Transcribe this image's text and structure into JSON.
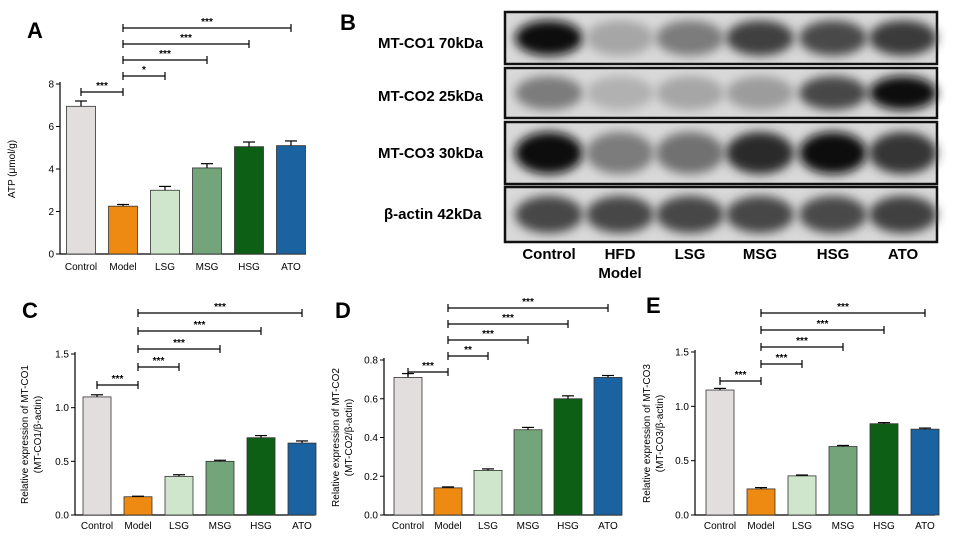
{
  "colors": {
    "Control": "#e3dede",
    "Model": "#ee8a12",
    "LSG": "#cfe5cc",
    "MSG": "#74a47a",
    "HSG": "#0d5f16",
    "ATO": "#1b62a0"
  },
  "chart_data": [
    {
      "id": "A",
      "panel_label": "A",
      "type": "bar",
      "categories": [
        "Control",
        "Model",
        "LSG",
        "MSG",
        "HSG",
        "ATO"
      ],
      "values": [
        6.95,
        2.25,
        3.0,
        4.05,
        5.05,
        5.1
      ],
      "errors": [
        0.25,
        0.08,
        0.18,
        0.2,
        0.22,
        0.22
      ],
      "ylabel_lines": [
        "ATP (μmol/g)"
      ],
      "ylim": [
        0,
        8
      ],
      "yticks": [
        0,
        2,
        4,
        6,
        8
      ],
      "ytick_labels": [
        "0",
        "2",
        "4",
        "6",
        "8"
      ],
      "significance": [
        {
          "from": 0,
          "to": 1,
          "label": "***"
        },
        {
          "from": 1,
          "to": 2,
          "label": "*"
        },
        {
          "from": 1,
          "to": 3,
          "label": "***"
        },
        {
          "from": 1,
          "to": 4,
          "label": "***"
        },
        {
          "from": 1,
          "to": 5,
          "label": "***"
        }
      ]
    },
    {
      "id": "C",
      "panel_label": "C",
      "type": "bar",
      "categories": [
        "Control",
        "Model",
        "LSG",
        "MSG",
        "HSG",
        "ATO"
      ],
      "values": [
        1.1,
        0.17,
        0.36,
        0.5,
        0.72,
        0.67
      ],
      "errors": [
        0.02,
        0.005,
        0.015,
        0.01,
        0.02,
        0.02
      ],
      "ylabel_lines": [
        "Relative expression of MT-CO1",
        "(MT-CO1/β-actin)"
      ],
      "ylim": [
        0,
        1.5
      ],
      "yticks": [
        0,
        0.5,
        1.0,
        1.5
      ],
      "ytick_labels": [
        "0.0",
        "0.5",
        "1.0",
        "1.5"
      ],
      "significance": [
        {
          "from": 0,
          "to": 1,
          "label": "***"
        },
        {
          "from": 1,
          "to": 2,
          "label": "***"
        },
        {
          "from": 1,
          "to": 3,
          "label": "***"
        },
        {
          "from": 1,
          "to": 4,
          "label": "***"
        },
        {
          "from": 1,
          "to": 5,
          "label": "***"
        }
      ]
    },
    {
      "id": "D",
      "panel_label": "D",
      "type": "bar",
      "categories": [
        "Control",
        "Model",
        "LSG",
        "MSG",
        "HSG",
        "ATO"
      ],
      "values": [
        0.71,
        0.14,
        0.23,
        0.44,
        0.6,
        0.71
      ],
      "errors": [
        0.02,
        0.005,
        0.008,
        0.012,
        0.015,
        0.01
      ],
      "ylabel_lines": [
        "Relative expression of MT-CO2",
        "(MT-CO2/β-actin)"
      ],
      "ylim": [
        0,
        0.8
      ],
      "yticks": [
        0,
        0.2,
        0.4,
        0.6,
        0.8
      ],
      "ytick_labels": [
        "0.0",
        "0.2",
        "0.4",
        "0.6",
        "0.8"
      ],
      "significance": [
        {
          "from": 0,
          "to": 1,
          "label": "***"
        },
        {
          "from": 1,
          "to": 2,
          "label": "**"
        },
        {
          "from": 1,
          "to": 3,
          "label": "***"
        },
        {
          "from": 1,
          "to": 4,
          "label": "***"
        },
        {
          "from": 1,
          "to": 5,
          "label": "***"
        }
      ]
    },
    {
      "id": "E",
      "panel_label": "E",
      "type": "bar",
      "categories": [
        "Control",
        "Model",
        "LSG",
        "MSG",
        "HSG",
        "ATO"
      ],
      "values": [
        1.15,
        0.24,
        0.36,
        0.63,
        0.84,
        0.79
      ],
      "errors": [
        0.015,
        0.012,
        0.008,
        0.01,
        0.01,
        0.01
      ],
      "ylabel_lines": [
        "Relative expression of MT-CO3",
        "(MT-CO3/β-actin)"
      ],
      "ylim": [
        0,
        1.5
      ],
      "yticks": [
        0,
        0.5,
        1.0,
        1.5
      ],
      "ytick_labels": [
        "0.0",
        "0.5",
        "1.0",
        "1.5"
      ],
      "significance": [
        {
          "from": 0,
          "to": 1,
          "label": "***"
        },
        {
          "from": 1,
          "to": 2,
          "label": "***"
        },
        {
          "from": 1,
          "to": 3,
          "label": "***"
        },
        {
          "from": 1,
          "to": 4,
          "label": "***"
        },
        {
          "from": 1,
          "to": 5,
          "label": "***"
        }
      ]
    }
  ],
  "western_blot": {
    "panel_label": "B",
    "rows": [
      {
        "label": "MT-CO1 70kDa",
        "intensity": [
          0.98,
          0.25,
          0.45,
          0.72,
          0.68,
          0.75
        ]
      },
      {
        "label": "MT-CO2 25kDa",
        "intensity": [
          0.45,
          0.2,
          0.25,
          0.3,
          0.7,
          0.95
        ]
      },
      {
        "label": "MT-CO3 30kDa",
        "intensity": [
          0.98,
          0.45,
          0.5,
          0.82,
          0.95,
          0.78
        ]
      },
      {
        "label": "β-actin 42kDa",
        "intensity": [
          0.7,
          0.7,
          0.7,
          0.7,
          0.68,
          0.72
        ]
      }
    ],
    "lanes": [
      "Control",
      "HFD",
      "LSG",
      "MSG",
      "HSG",
      "ATO"
    ],
    "lane_sublabels": [
      "",
      "Model",
      "",
      "",
      "",
      ""
    ]
  }
}
